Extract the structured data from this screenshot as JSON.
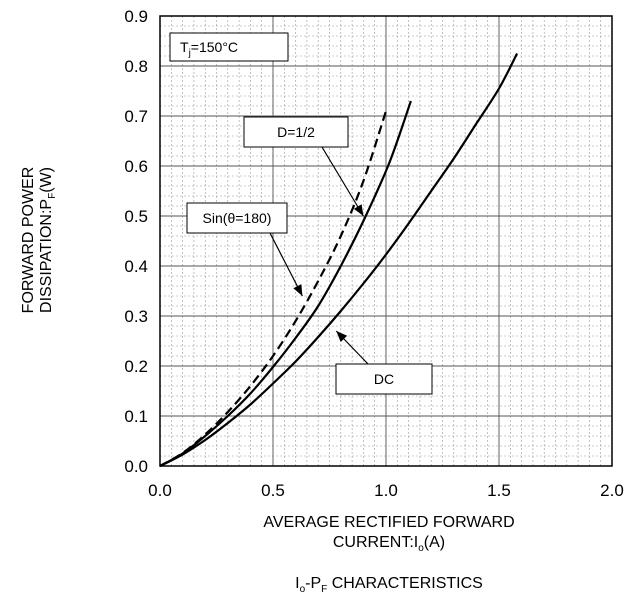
{
  "chart_data": {
    "type": "line",
    "title": "I",
    "title_sub1": "o",
    "title_mid": "-P",
    "title_sub2": "F",
    "title_rest": " CHARACTERISTICS",
    "xlabel_line1": "AVERAGE RECTIFIED FORWARD",
    "xlabel_line2": "CURRENT:I",
    "xlabel_line2_sub": "o",
    "xlabel_line2_end": "(A)",
    "ylabel_line1": "FORWARD POWER",
    "ylabel_line2": "DISSIPATION:P",
    "ylabel_line2_sub": "F",
    "ylabel_line2_end": "(W)",
    "xlim": [
      0,
      2.0
    ],
    "ylim": [
      0,
      0.9
    ],
    "x_ticks": [
      "0.0",
      "0.5",
      "1.0",
      "1.5",
      "2.0"
    ],
    "y_ticks": [
      "0.0",
      "0.1",
      "0.2",
      "0.3",
      "0.4",
      "0.5",
      "0.6",
      "0.7",
      "0.8",
      "0.9"
    ],
    "grid": true,
    "condition_label": "T",
    "condition_sub": "j",
    "condition_value": "=150°C",
    "series": [
      {
        "name": "DC",
        "style": "solid",
        "x": [
          0,
          0.1,
          0.2,
          0.3,
          0.4,
          0.5,
          0.6,
          0.7,
          0.8,
          0.9,
          1.0,
          1.1,
          1.2,
          1.3,
          1.4,
          1.5,
          1.58
        ],
        "y": [
          0,
          0.023,
          0.052,
          0.086,
          0.123,
          0.165,
          0.209,
          0.258,
          0.31,
          0.365,
          0.423,
          0.485,
          0.55,
          0.615,
          0.685,
          0.755,
          0.825
        ]
      },
      {
        "name": "D=1/2",
        "style": "solid",
        "x": [
          0,
          0.1,
          0.2,
          0.3,
          0.4,
          0.5,
          0.6,
          0.7,
          0.8,
          0.9,
          1.0,
          1.05,
          1.11
        ],
        "y": [
          0,
          0.025,
          0.06,
          0.1,
          0.145,
          0.198,
          0.256,
          0.32,
          0.4,
          0.49,
          0.59,
          0.65,
          0.73
        ]
      },
      {
        "name": "Sin(θ=180)",
        "style": "dashed",
        "x": [
          0,
          0.1,
          0.2,
          0.3,
          0.4,
          0.5,
          0.6,
          0.7,
          0.8,
          0.9,
          1.0
        ],
        "y": [
          0,
          0.026,
          0.063,
          0.108,
          0.16,
          0.22,
          0.29,
          0.37,
          0.46,
          0.57,
          0.71
        ]
      }
    ],
    "annotations": [
      {
        "text": "D=1/2",
        "series": "D=1/2",
        "point": [
          0.9,
          0.5
        ]
      },
      {
        "text": "Sin(θ=180)",
        "series": "Sin(θ=180)",
        "point": [
          0.63,
          0.34
        ]
      },
      {
        "text": "DC",
        "series": "DC",
        "point": [
          0.78,
          0.27
        ]
      }
    ]
  }
}
